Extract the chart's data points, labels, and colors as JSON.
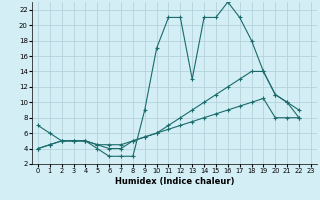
{
  "xlabel": "Humidex (Indice chaleur)",
  "bg_color": "#d4eef5",
  "grid_color": "#b0cdd6",
  "line_color": "#1a6b6b",
  "xlim": [
    -0.5,
    23.5
  ],
  "ylim": [
    2,
    23
  ],
  "xticks": [
    0,
    1,
    2,
    3,
    4,
    5,
    6,
    7,
    8,
    9,
    10,
    11,
    12,
    13,
    14,
    15,
    16,
    17,
    18,
    19,
    20,
    21,
    22,
    23
  ],
  "yticks": [
    2,
    4,
    6,
    8,
    10,
    12,
    14,
    16,
    18,
    20,
    22
  ],
  "series1_x": [
    0,
    1,
    2,
    3,
    4,
    5,
    6,
    7,
    8,
    9,
    10,
    11,
    12,
    13,
    14,
    15,
    16,
    17,
    18,
    19,
    20,
    21,
    22
  ],
  "series1_y": [
    7,
    6,
    5,
    5,
    5,
    4,
    3,
    3,
    3,
    9,
    17,
    21,
    21,
    13,
    21,
    21,
    23,
    21,
    18,
    14,
    11,
    10,
    8
  ],
  "series2_x": [
    0,
    1,
    2,
    3,
    4,
    5,
    6,
    7,
    8,
    9,
    10,
    11,
    12,
    13,
    14,
    15,
    16,
    17,
    18,
    19,
    20,
    21,
    22
  ],
  "series2_y": [
    4,
    4.5,
    5,
    5,
    5,
    4.5,
    4,
    4,
    5,
    5.5,
    6,
    7,
    8,
    9,
    10,
    11,
    12,
    13,
    14,
    14,
    11,
    10,
    9
  ],
  "series3_x": [
    0,
    1,
    2,
    3,
    4,
    5,
    6,
    7,
    8,
    9,
    10,
    11,
    12,
    13,
    14,
    15,
    16,
    17,
    18,
    19,
    20,
    21,
    22
  ],
  "series3_y": [
    4,
    4.5,
    5,
    5,
    5,
    4.5,
    4.5,
    4.5,
    5,
    5.5,
    6,
    6.5,
    7,
    7.5,
    8,
    8.5,
    9,
    9.5,
    10,
    10.5,
    8,
    8,
    8
  ]
}
